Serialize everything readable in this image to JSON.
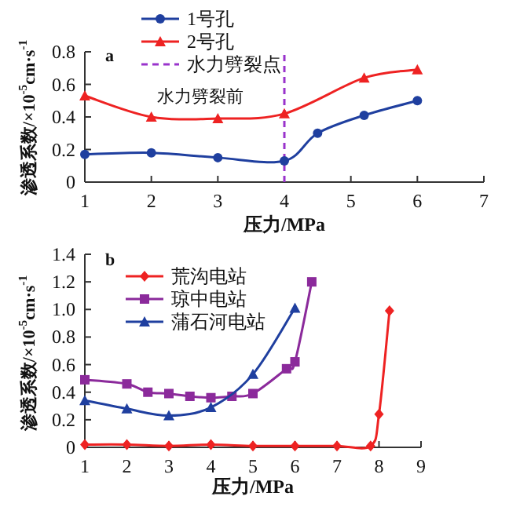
{
  "chart_data": [
    {
      "type": "line",
      "xlabel": "压力/MPa",
      "ylabel": "渗透系数/×10$^{-5}$cm·s$^{-1}$",
      "xlim": [
        1,
        7
      ],
      "ylim": [
        0,
        0.8
      ],
      "xticks": [
        1,
        2,
        3,
        4,
        5,
        6,
        7
      ],
      "yticks": [
        0,
        0.2,
        0.4,
        0.6,
        0.8
      ],
      "legend": "top",
      "annotations": [
        "a",
        "水力劈裂前"
      ],
      "ref_lines": [
        {
          "axis": "x",
          "value": 4,
          "label": "水力劈裂点",
          "color": "#9933cc",
          "line_style": "dashed"
        }
      ],
      "series": [
        {
          "name": "1号孔",
          "color": "#1f3f9f",
          "marker": "circle",
          "x": [
            1,
            2,
            3,
            4,
            4.5,
            5.2,
            6
          ],
          "values": [
            0.17,
            0.18,
            0.15,
            0.13,
            0.3,
            0.41,
            0.5
          ]
        },
        {
          "name": "2号孔",
          "color": "#ee2222",
          "marker": "triangle",
          "x": [
            1,
            2,
            3,
            4,
            5.2,
            6
          ],
          "values": [
            0.53,
            0.4,
            0.39,
            0.42,
            0.64,
            0.69
          ]
        }
      ]
    },
    {
      "type": "line",
      "xlabel": "压力/MPa",
      "ylabel": "渗透系数/×10$^{-5}$cm·s$^{-1}$",
      "xlim": [
        1,
        9
      ],
      "ylim": [
        0,
        1.4
      ],
      "xticks": [
        1,
        2,
        3,
        4,
        5,
        6,
        7,
        8,
        9
      ],
      "yticks": [
        0,
        0.2,
        0.4,
        0.6,
        0.8,
        {
          "value": 1,
          "label": "1.0"
        },
        1.2,
        1.4
      ],
      "legend": "top left",
      "annotations": [
        "b"
      ],
      "series": [
        {
          "name": "荒沟电站",
          "color": "#ee2222",
          "marker": "diamond",
          "x": [
            1,
            2,
            3,
            4,
            5,
            6,
            7,
            7.8,
            8,
            8.25
          ],
          "values": [
            0.02,
            0.02,
            0.01,
            0.02,
            0.01,
            0.01,
            0.01,
            0.01,
            0.24,
            0.99
          ]
        },
        {
          "name": "琼中电站",
          "color": "#8b2a9b",
          "marker": "square",
          "x": [
            1,
            2,
            2.5,
            3,
            3.5,
            4,
            4.5,
            5,
            5.8,
            6,
            6.4
          ],
          "values": [
            0.49,
            0.46,
            0.4,
            0.39,
            0.37,
            0.36,
            0.37,
            0.39,
            0.57,
            0.62,
            1.2
          ]
        },
        {
          "name": "蒲石河电站",
          "color": "#1f3f9f",
          "marker": "triangle",
          "x": [
            1,
            2,
            3,
            4,
            5,
            6
          ],
          "values": [
            0.34,
            0.28,
            0.23,
            0.29,
            0.53,
            1.01
          ]
        }
      ]
    }
  ]
}
